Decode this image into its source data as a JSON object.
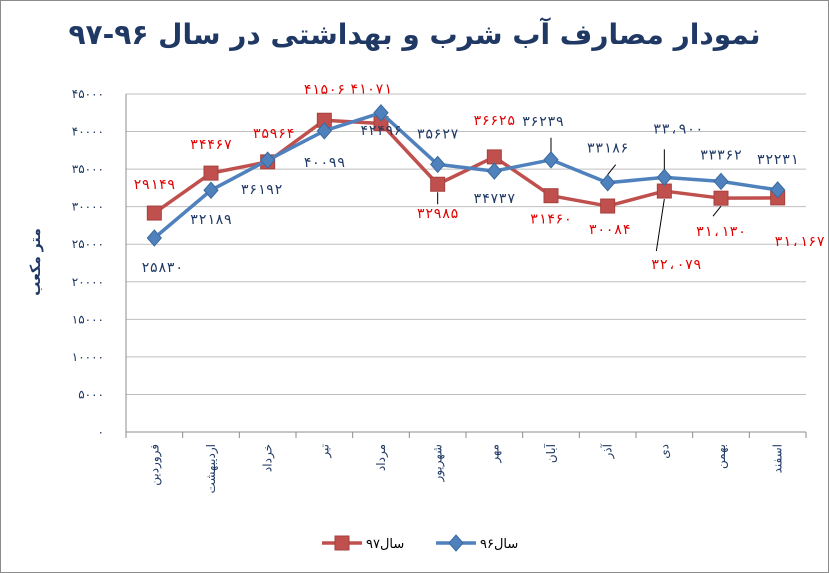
{
  "chart_data": {
    "type": "line",
    "title": "نمودار مصارف آب شرب و بهداشتی در سال ۹۶-۹۷",
    "ylabel": "متر مکعب",
    "xlabel": "",
    "ylim": [
      0,
      45000
    ],
    "y_ticks": [
      "۰",
      "۵۰۰۰",
      "۱۰۰۰۰",
      "۱۵۰۰۰",
      "۲۰۰۰۰",
      "۲۵۰۰۰",
      "۳۰۰۰۰",
      "۳۵۰۰۰",
      "۴۰۰۰۰",
      "۴۵۰۰۰"
    ],
    "y_tick_values": [
      0,
      5000,
      10000,
      15000,
      20000,
      25000,
      30000,
      35000,
      40000,
      45000
    ],
    "categories": [
      "فروردین",
      "اردیبهشت",
      "خرداد",
      "تیر",
      "مرداد",
      "شهریور",
      "مهر",
      "آبان",
      "آذر",
      "دی",
      "بهمن",
      "اسفند"
    ],
    "grid": "horizontal",
    "legend_position": "bottom",
    "series": [
      {
        "name": "سال۹۷",
        "color": "#c0504d",
        "marker": "square",
        "values": [
          29149,
          34467,
          35964,
          41506,
          41071,
          32985,
          36625,
          31460,
          30084,
          32079,
          31130,
          31167
        ],
        "labels": [
          "۲۹۱۴۹",
          "۳۴۴۶۷",
          "۳۵۹۶۴",
          "۴۱۵۰۶",
          "۴۱۰۷۱",
          "۳۲۹۸۵",
          "۳۶۶۲۵",
          "۳۱۴۶۰",
          "۳۰۰۸۴",
          "۳۲،۰۷۹",
          "۳۱،۱۳۰",
          "۳۱،۱۶۷"
        ]
      },
      {
        "name": "سال۹۶",
        "color": "#4f81bd",
        "marker": "diamond",
        "values": [
          25830,
          32189,
          36192,
          40099,
          42496,
          35627,
          34737,
          36239,
          33186,
          33900,
          33362,
          32231
        ],
        "labels": [
          "۲۵۸۳۰",
          "۳۲۱۸۹",
          "۳۶۱۹۲",
          "۴۰۰۹۹",
          "۴۲۴۹۶",
          "۳۵۶۲۷",
          "۳۴۷۳۷",
          "۳۶۲۳۹",
          "۳۳۱۸۶",
          "۳۳،۹۰۰",
          "۳۳۳۶۲",
          "۳۲۲۳۱"
        ]
      }
    ],
    "colors": {
      "title": "#1f3864",
      "axis_text": "#1f3864",
      "grid": "#bfbfbf"
    }
  }
}
